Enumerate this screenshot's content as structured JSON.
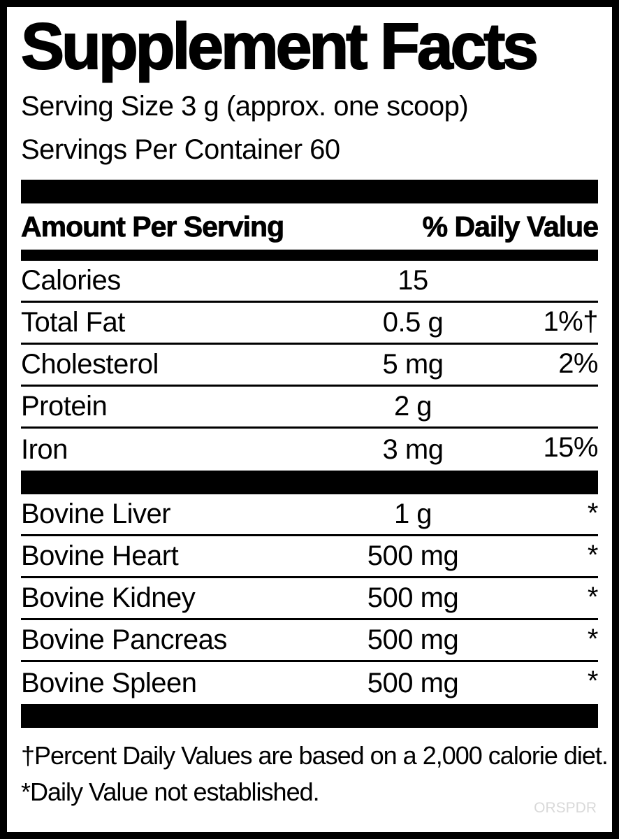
{
  "label": {
    "title": "Supplement Facts",
    "serving_size": "Serving Size 3 g (approx. one scoop)",
    "servings_per_container": "Servings Per Container 60",
    "header": {
      "amount": "Amount Per Serving",
      "daily_value": "% Daily Value"
    },
    "nutrients": [
      {
        "name": "Calories",
        "amount": "15",
        "dv": ""
      },
      {
        "name": "Total Fat",
        "amount": "0.5 g",
        "dv": "1%†"
      },
      {
        "name": "Cholesterol",
        "amount": "5 mg",
        "dv": "2%"
      },
      {
        "name": "Protein",
        "amount": "2 g",
        "dv": ""
      },
      {
        "name": "Iron",
        "amount": "3 mg",
        "dv": "15%"
      }
    ],
    "ingredients": [
      {
        "name": "Bovine Liver",
        "amount": "1 g",
        "dv": "*"
      },
      {
        "name": "Bovine Heart",
        "amount": "500 mg",
        "dv": "*"
      },
      {
        "name": "Bovine Kidney",
        "amount": "500 mg",
        "dv": "*"
      },
      {
        "name": "Bovine Pancreas",
        "amount": "500 mg",
        "dv": "*"
      },
      {
        "name": "Bovine Spleen",
        "amount": "500 mg",
        "dv": "*"
      }
    ],
    "footnotes": [
      "†Percent Daily Values are based on a 2,000 calorie diet.",
      "*Daily Value not established."
    ],
    "watermark": "ORSPDR",
    "colors": {
      "text": "#000000",
      "background": "#ffffff",
      "watermark": "#d9d9d9"
    }
  }
}
